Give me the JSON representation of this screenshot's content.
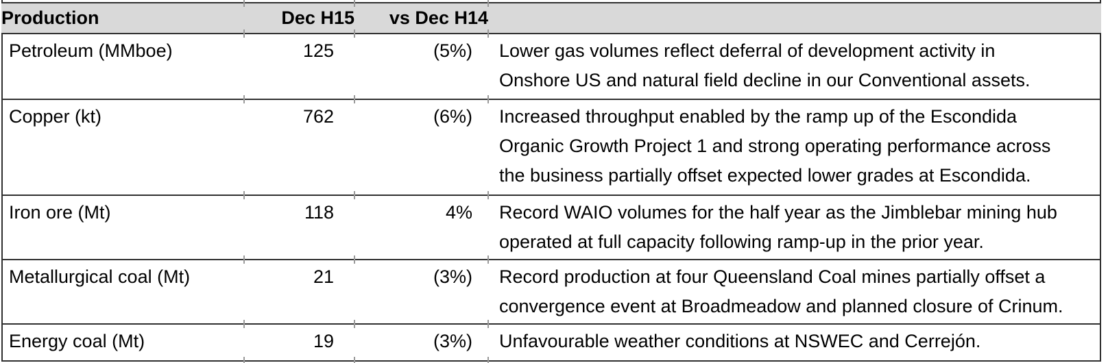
{
  "table": {
    "header": {
      "production": "Production",
      "dec_h15": "Dec H15",
      "vs_dec_h14": "vs Dec H14",
      "commentary": ""
    },
    "rows": [
      {
        "product": "Petroleum (MMboe)",
        "dec_h15": "125",
        "vs_dec_h14": "(5%)",
        "commentary": "Lower gas volumes reflect deferral of development activity in Onshore US and natural field decline in our Conventional assets."
      },
      {
        "product": "Copper (kt)",
        "dec_h15": "762",
        "vs_dec_h14": "(6%)",
        "commentary": "Increased throughput enabled by the ramp up of the Escondida Organic Growth Project 1 and strong operating performance across the business partially offset expected lower grades at Escondida."
      },
      {
        "product": "Iron ore (Mt)",
        "dec_h15": "118",
        "vs_dec_h14": "4%",
        "commentary": "Record WAIO volumes for the half year as the Jimblebar mining hub operated at full capacity following ramp-up in the prior year."
      },
      {
        "product": "Metallurgical coal (Mt)",
        "dec_h15": "21",
        "vs_dec_h14": "(3%)",
        "commentary": "Record production at four Queensland Coal mines partially offset a convergence event at Broadmeadow and planned closure of Crinum."
      },
      {
        "product": "Energy coal (Mt)",
        "dec_h15": "19",
        "vs_dec_h14": "(3%)",
        "commentary": "Unfavourable weather conditions at NSWEC and Cerrejón."
      }
    ],
    "colors": {
      "header_bg": "#d9d9d9",
      "rule": "#2f2f2f",
      "tick": "#9a9a9a",
      "text": "#000000"
    }
  }
}
